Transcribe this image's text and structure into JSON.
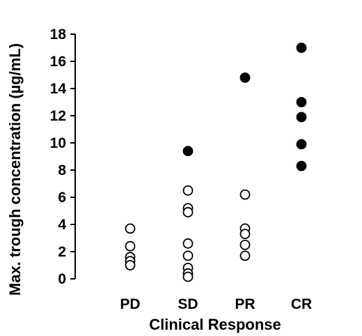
{
  "chart_data": {
    "type": "scatter",
    "title": "",
    "xlabel": "Clinical Response",
    "ylabel": "Max. trough concentration (µg/mL)",
    "categories": [
      "PD",
      "SD",
      "PR",
      "CR"
    ],
    "ylim": [
      0,
      18
    ],
    "yticks": [
      0,
      2,
      4,
      6,
      8,
      10,
      12,
      14,
      16,
      18
    ],
    "grid": false,
    "legend": "none",
    "series": [
      {
        "marker": "open-circle",
        "points": [
          {
            "category": "PD",
            "y": 3.7
          },
          {
            "category": "PD",
            "y": 2.4
          },
          {
            "category": "PD",
            "y": 1.6
          },
          {
            "category": "PD",
            "y": 1.3
          },
          {
            "category": "PD",
            "y": 1.0
          },
          {
            "category": "SD",
            "y": 6.5
          },
          {
            "category": "SD",
            "y": 5.2
          },
          {
            "category": "SD",
            "y": 4.9
          },
          {
            "category": "SD",
            "y": 2.6
          },
          {
            "category": "SD",
            "y": 1.7
          },
          {
            "category": "SD",
            "y": 0.8
          },
          {
            "category": "SD",
            "y": 0.4
          },
          {
            "category": "SD",
            "y": 0.15
          },
          {
            "category": "PR",
            "y": 6.2
          },
          {
            "category": "PR",
            "y": 3.7
          },
          {
            "category": "PR",
            "y": 3.3
          },
          {
            "category": "PR",
            "y": 2.5
          },
          {
            "category": "PR",
            "y": 1.7
          }
        ]
      },
      {
        "marker": "filled-circle",
        "points": [
          {
            "category": "SD",
            "y": 9.4
          },
          {
            "category": "PR",
            "y": 14.8
          },
          {
            "category": "CR",
            "y": 17.0
          },
          {
            "category": "CR",
            "y": 13.0
          },
          {
            "category": "CR",
            "y": 11.9
          },
          {
            "category": "CR",
            "y": 9.9
          },
          {
            "category": "CR",
            "y": 8.3
          }
        ]
      }
    ]
  }
}
